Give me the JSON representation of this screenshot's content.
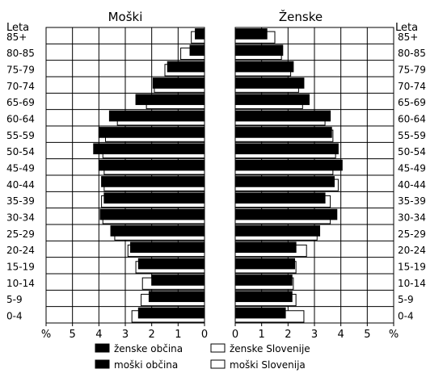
{
  "chart_data": {
    "type": "bar",
    "orientation": "horizontal-population-pyramid",
    "panel_titles": {
      "left": "Moški",
      "right": "Ženske"
    },
    "axis_title_left": "Leta",
    "axis_title_right": "Leta",
    "categories": [
      "85+",
      "80-85",
      "75-79",
      "70-74",
      "65-69",
      "60-64",
      "55-59",
      "50-54",
      "45-49",
      "40-44",
      "35-39",
      "30-34",
      "25-29",
      "20-24",
      "15-19",
      "10-14",
      "5-9",
      "0-4"
    ],
    "left_ticks": [
      "%",
      "5",
      "4",
      "3",
      "2",
      "1",
      "0"
    ],
    "right_ticks": [
      "0",
      "1",
      "2",
      "3",
      "4",
      "5",
      "%"
    ],
    "xlim": [
      0,
      6
    ],
    "grid": true,
    "legend_position": "bottom",
    "legend": [
      {
        "label": "ženske občina",
        "style": "filled"
      },
      {
        "label": "moški občina",
        "style": "filled"
      },
      {
        "label": "ženske Slovenije",
        "style": "outline"
      },
      {
        "label": "moški Slovenija",
        "style": "outline"
      }
    ],
    "series": [
      {
        "name": "moški občina",
        "side": "left",
        "style": "filled",
        "values": [
          0.35,
          0.55,
          1.4,
          1.95,
          2.6,
          3.6,
          4.0,
          4.2,
          4.0,
          3.9,
          3.8,
          3.95,
          3.55,
          2.8,
          2.5,
          2.0,
          2.1,
          2.5
        ]
      },
      {
        "name": "moški Slovenija",
        "side": "left",
        "style": "outline",
        "values": [
          0.5,
          0.9,
          1.5,
          1.9,
          2.2,
          3.3,
          3.75,
          3.85,
          3.8,
          3.8,
          3.9,
          3.85,
          3.4,
          2.9,
          2.6,
          2.35,
          2.4,
          2.75
        ]
      },
      {
        "name": "ženske občina",
        "side": "right",
        "style": "filled",
        "values": [
          1.2,
          1.8,
          2.2,
          2.6,
          2.8,
          3.6,
          3.65,
          3.9,
          4.05,
          3.75,
          3.4,
          3.85,
          3.2,
          2.3,
          2.25,
          2.15,
          2.15,
          1.9
        ]
      },
      {
        "name": "ženske Slovenije",
        "side": "right",
        "style": "outline",
        "values": [
          1.5,
          1.75,
          2.1,
          2.4,
          2.55,
          3.4,
          3.7,
          3.8,
          3.7,
          3.9,
          3.6,
          3.6,
          3.1,
          2.7,
          2.3,
          2.2,
          2.3,
          2.6
        ]
      }
    ]
  }
}
